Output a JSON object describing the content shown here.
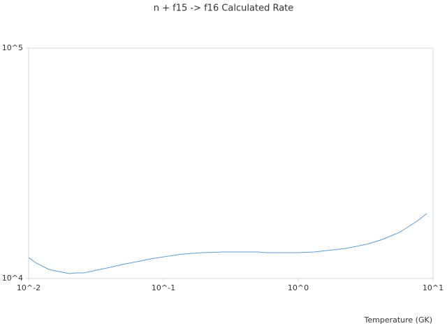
{
  "chart_data": {
    "type": "line",
    "title": "n + f15 -> f16 Calculated Rate",
    "x_label": "Temperature (GK)",
    "xscale": "log",
    "yscale": "log",
    "xlim": [
      0.01,
      10
    ],
    "ylim": [
      10000,
      100000
    ],
    "xticks": [
      {
        "value": 0.01,
        "label": "10^-2"
      },
      {
        "value": 0.1,
        "label": "10^-1"
      },
      {
        "value": 1,
        "label": "10^0"
      },
      {
        "value": 10,
        "label": "10^1"
      }
    ],
    "yticks": [
      {
        "value": 10000,
        "label": "10^4"
      },
      {
        "value": 100000,
        "label": "10^5"
      }
    ],
    "grid": false,
    "series": [
      {
        "color": "#5b9bd5",
        "x": [
          0.01,
          0.0114,
          0.0141,
          0.0167,
          0.02,
          0.0225,
          0.0257,
          0.0303,
          0.0404,
          0.0494,
          0.0635,
          0.0798,
          0.1,
          0.138,
          0.195,
          0.279,
          0.507,
          0.57,
          1,
          1.316,
          2.25,
          3.22,
          4.08,
          5.64,
          7.6,
          8.97
        ],
        "values": [
          12330,
          11660,
          10950,
          10720,
          10500,
          10570,
          10570,
          10800,
          11180,
          11500,
          11820,
          12160,
          12410,
          12760,
          12950,
          13040,
          13040,
          12950,
          12950,
          13040,
          13500,
          14080,
          14680,
          15850,
          17720,
          19130
        ]
      }
    ]
  }
}
